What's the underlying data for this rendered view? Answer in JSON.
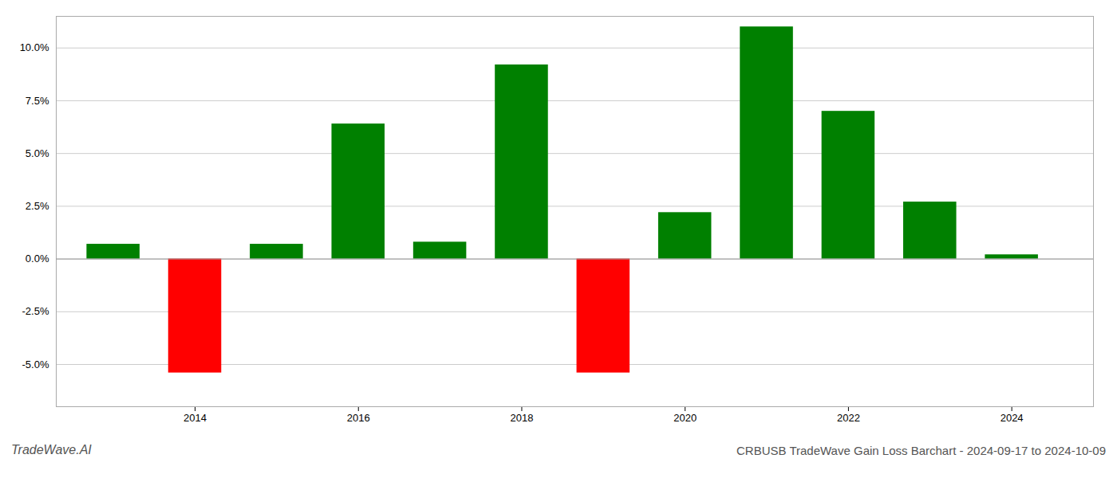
{
  "chart_data": {
    "type": "bar",
    "title": "CRBUSB TradeWave Gain Loss Barchart - 2024-09-17 to 2024-10-09",
    "annotations": [
      "TradeWave.AI"
    ],
    "x": [
      2013,
      2014,
      2015,
      2016,
      2017,
      2018,
      2019,
      2020,
      2021,
      2022,
      2023,
      2024
    ],
    "values": [
      0.007,
      -0.054,
      0.007,
      0.064,
      0.008,
      0.092,
      -0.054,
      0.022,
      0.11,
      0.07,
      0.027,
      0.002
    ],
    "colors": [
      "#008000",
      "#ff0000",
      "#008000",
      "#008000",
      "#008000",
      "#008000",
      "#ff0000",
      "#008000",
      "#008000",
      "#008000",
      "#008000",
      "#008000"
    ],
    "xlim": [
      2012.3,
      2025.0
    ],
    "xticks": [
      2014,
      2016,
      2018,
      2020,
      2022,
      2024
    ],
    "ylim": [
      -0.07,
      0.115
    ],
    "yticks": [
      {
        "value": -0.05,
        "label": "-5.0%"
      },
      {
        "value": -0.025,
        "label": "-2.5%"
      },
      {
        "value": 0,
        "label": "0.0%"
      },
      {
        "value": 0.025,
        "label": "2.5%"
      },
      {
        "value": 0.05,
        "label": "5.0%"
      },
      {
        "value": 0.075,
        "label": "7.5%"
      },
      {
        "value": 0.1,
        "label": "10.0%"
      }
    ],
    "grid": true
  }
}
